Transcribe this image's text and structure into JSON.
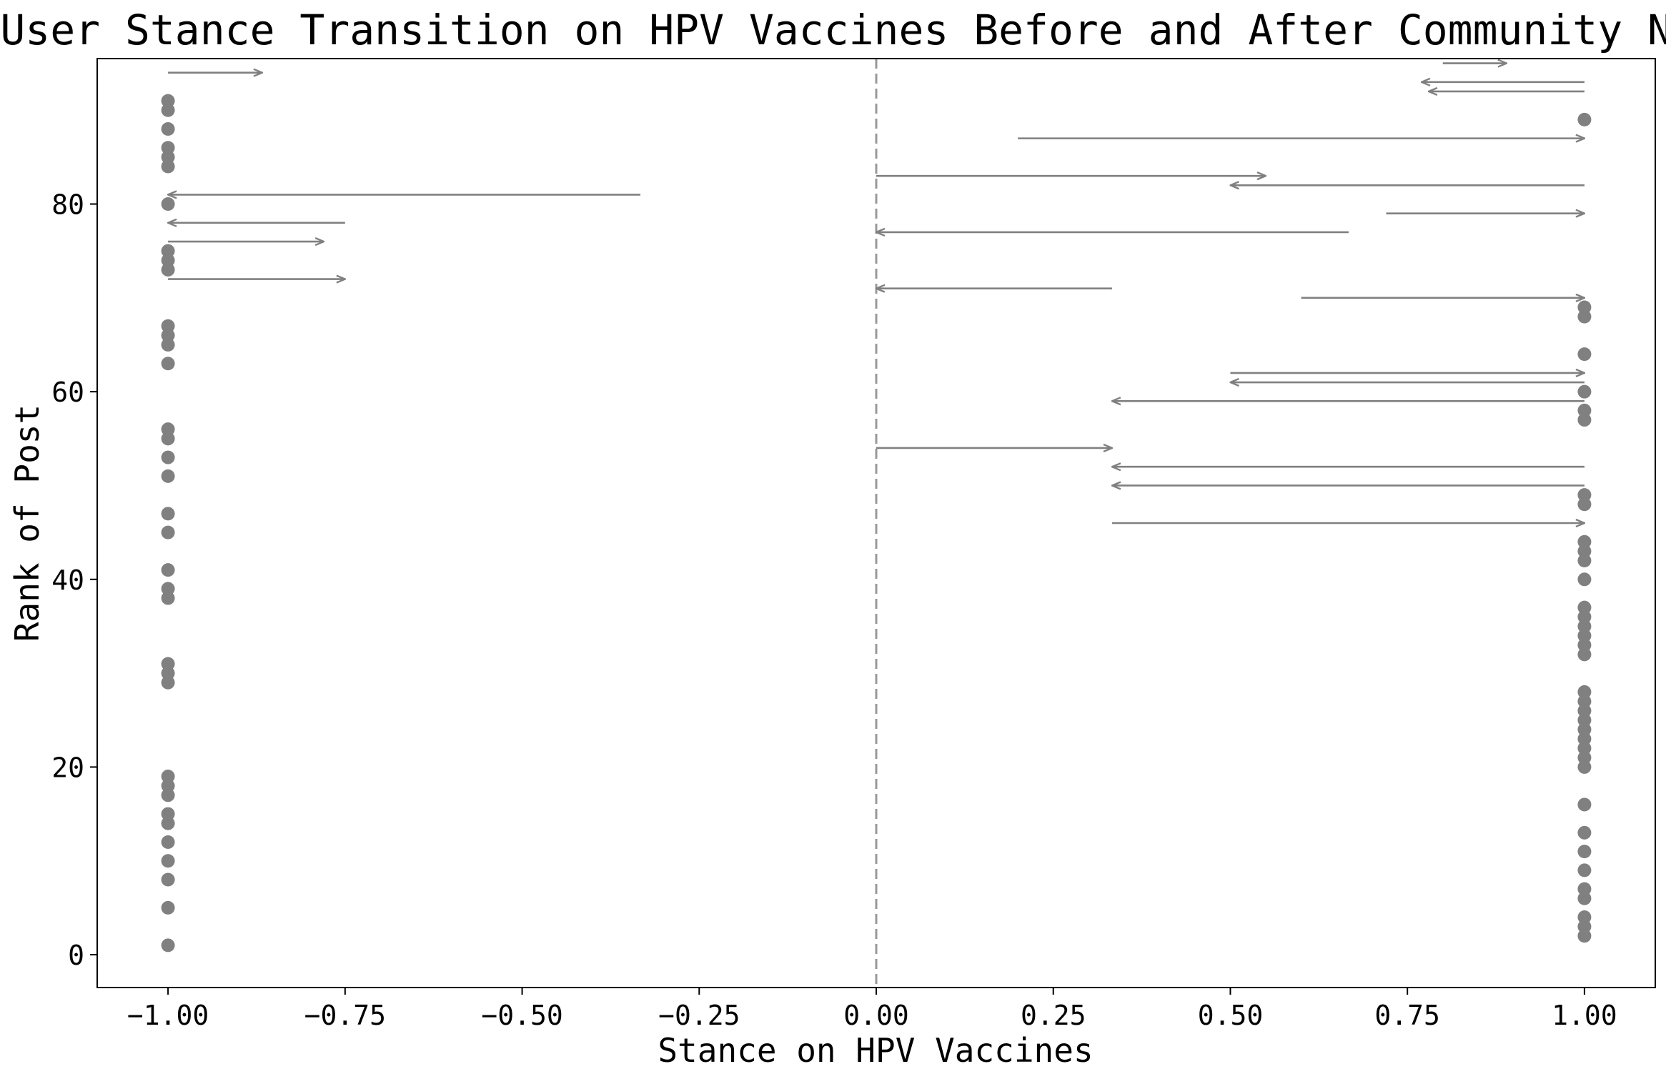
{
  "chart_data": {
    "type": "scatter",
    "title": "User Stance Transition on HPV Vaccines Before and After Community Notes",
    "xlabel": "Stance on HPV Vaccines",
    "ylabel": "Rank of Post",
    "xlim": [
      -1.1,
      1.1
    ],
    "ylim": [
      -3.5,
      95.5
    ],
    "x_ticks": [
      -1.0,
      -0.75,
      -0.5,
      -0.25,
      0.0,
      0.25,
      0.5,
      0.75,
      1.0
    ],
    "x_tick_labels": [
      "−1.00",
      "−0.75",
      "−0.50",
      "−0.25",
      "0.00",
      "0.25",
      "0.50",
      "0.75",
      "1.00"
    ],
    "y_ticks": [
      0,
      20,
      40,
      60,
      80
    ],
    "y_tick_labels": [
      "0",
      "20",
      "40",
      "60",
      "80"
    ],
    "reference_line_x": 0.0,
    "color": "#808080",
    "grid": false,
    "unchanged_points": [
      {
        "rank": 1,
        "stance": -1.0
      },
      {
        "rank": 5,
        "stance": -1.0
      },
      {
        "rank": 8,
        "stance": -1.0
      },
      {
        "rank": 10,
        "stance": -1.0
      },
      {
        "rank": 12,
        "stance": -1.0
      },
      {
        "rank": 14,
        "stance": -1.0
      },
      {
        "rank": 15,
        "stance": -1.0
      },
      {
        "rank": 17,
        "stance": -1.0
      },
      {
        "rank": 18,
        "stance": -1.0
      },
      {
        "rank": 19,
        "stance": -1.0
      },
      {
        "rank": 29,
        "stance": -1.0
      },
      {
        "rank": 30,
        "stance": -1.0
      },
      {
        "rank": 31,
        "stance": -1.0
      },
      {
        "rank": 38,
        "stance": -1.0
      },
      {
        "rank": 39,
        "stance": -1.0
      },
      {
        "rank": 41,
        "stance": -1.0
      },
      {
        "rank": 45,
        "stance": -1.0
      },
      {
        "rank": 47,
        "stance": -1.0
      },
      {
        "rank": 51,
        "stance": -1.0
      },
      {
        "rank": 53,
        "stance": -1.0
      },
      {
        "rank": 55,
        "stance": -1.0
      },
      {
        "rank": 56,
        "stance": -1.0
      },
      {
        "rank": 63,
        "stance": -1.0
      },
      {
        "rank": 65,
        "stance": -1.0
      },
      {
        "rank": 66,
        "stance": -1.0
      },
      {
        "rank": 67,
        "stance": -1.0
      },
      {
        "rank": 73,
        "stance": -1.0
      },
      {
        "rank": 74,
        "stance": -1.0
      },
      {
        "rank": 75,
        "stance": -1.0
      },
      {
        "rank": 80,
        "stance": -1.0
      },
      {
        "rank": 84,
        "stance": -1.0
      },
      {
        "rank": 85,
        "stance": -1.0
      },
      {
        "rank": 86,
        "stance": -1.0
      },
      {
        "rank": 88,
        "stance": -1.0
      },
      {
        "rank": 90,
        "stance": -1.0
      },
      {
        "rank": 91,
        "stance": -1.0
      },
      {
        "rank": 2,
        "stance": 1.0
      },
      {
        "rank": 3,
        "stance": 1.0
      },
      {
        "rank": 4,
        "stance": 1.0
      },
      {
        "rank": 6,
        "stance": 1.0
      },
      {
        "rank": 7,
        "stance": 1.0
      },
      {
        "rank": 9,
        "stance": 1.0
      },
      {
        "rank": 11,
        "stance": 1.0
      },
      {
        "rank": 13,
        "stance": 1.0
      },
      {
        "rank": 16,
        "stance": 1.0
      },
      {
        "rank": 20,
        "stance": 1.0
      },
      {
        "rank": 21,
        "stance": 1.0
      },
      {
        "rank": 22,
        "stance": 1.0
      },
      {
        "rank": 23,
        "stance": 1.0
      },
      {
        "rank": 24,
        "stance": 1.0
      },
      {
        "rank": 25,
        "stance": 1.0
      },
      {
        "rank": 26,
        "stance": 1.0
      },
      {
        "rank": 27,
        "stance": 1.0
      },
      {
        "rank": 28,
        "stance": 1.0
      },
      {
        "rank": 32,
        "stance": 1.0
      },
      {
        "rank": 33,
        "stance": 1.0
      },
      {
        "rank": 34,
        "stance": 1.0
      },
      {
        "rank": 35,
        "stance": 1.0
      },
      {
        "rank": 36,
        "stance": 1.0
      },
      {
        "rank": 37,
        "stance": 1.0
      },
      {
        "rank": 40,
        "stance": 1.0
      },
      {
        "rank": 42,
        "stance": 1.0
      },
      {
        "rank": 43,
        "stance": 1.0
      },
      {
        "rank": 44,
        "stance": 1.0
      },
      {
        "rank": 48,
        "stance": 1.0
      },
      {
        "rank": 49,
        "stance": 1.0
      },
      {
        "rank": 57,
        "stance": 1.0
      },
      {
        "rank": 58,
        "stance": 1.0
      },
      {
        "rank": 60,
        "stance": 1.0
      },
      {
        "rank": 64,
        "stance": 1.0
      },
      {
        "rank": 68,
        "stance": 1.0
      },
      {
        "rank": 69,
        "stance": 1.0
      },
      {
        "rank": 89,
        "stance": 1.0
      }
    ],
    "transitions": [
      {
        "rank": 94,
        "before": -1.0,
        "after": -0.867
      },
      {
        "rank": 81,
        "before": -0.333,
        "after": -1.0
      },
      {
        "rank": 78,
        "before": -0.75,
        "after": -1.0
      },
      {
        "rank": 76,
        "before": -1.0,
        "after": -0.78
      },
      {
        "rank": 72,
        "before": -1.0,
        "after": -0.75
      },
      {
        "rank": 95,
        "before": 0.8,
        "after": 0.89
      },
      {
        "rank": 93,
        "before": 1.0,
        "after": 0.77
      },
      {
        "rank": 92,
        "before": 1.0,
        "after": 0.78
      },
      {
        "rank": 87,
        "before": 0.2,
        "after": 1.0
      },
      {
        "rank": 83,
        "before": 0.0,
        "after": 0.55
      },
      {
        "rank": 82,
        "before": 1.0,
        "after": 0.5
      },
      {
        "rank": 79,
        "before": 0.72,
        "after": 1.0
      },
      {
        "rank": 77,
        "before": 0.667,
        "after": 0.0
      },
      {
        "rank": 71,
        "before": 0.333,
        "after": 0.0
      },
      {
        "rank": 70,
        "before": 0.6,
        "after": 1.0
      },
      {
        "rank": 62,
        "before": 0.5,
        "after": 1.0
      },
      {
        "rank": 61,
        "before": 1.0,
        "after": 0.5
      },
      {
        "rank": 59,
        "before": 1.0,
        "after": 0.333
      },
      {
        "rank": 54,
        "before": 0.0,
        "after": 0.333
      },
      {
        "rank": 52,
        "before": 1.0,
        "after": 0.333
      },
      {
        "rank": 50,
        "before": 1.0,
        "after": 0.333
      },
      {
        "rank": 46,
        "before": 0.333,
        "after": 1.0
      }
    ]
  }
}
